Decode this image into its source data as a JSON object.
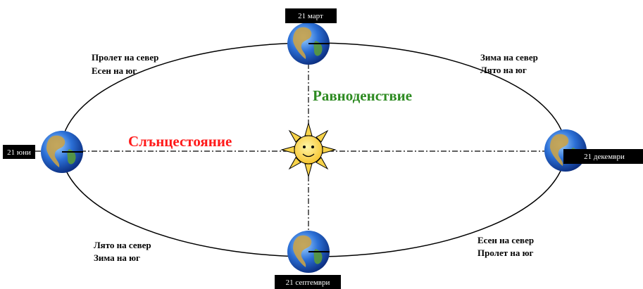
{
  "dates": {
    "march": "21 март",
    "june": "21 юни",
    "december": "21 декември",
    "september": "21 септември"
  },
  "seasons": [
    {
      "lines": [
        "Пролет на север",
        "Есен на юг"
      ]
    },
    {
      "lines": [
        "Зима на север",
        "Лято на юг"
      ]
    },
    {
      "lines": [
        "Лято на север",
        "Зима на юг"
      ]
    },
    {
      "lines": [
        "Есен на север",
        "Пролет на юг"
      ]
    }
  ],
  "equinox": "Равноденствие",
  "solstice": "Слънцестояние"
}
